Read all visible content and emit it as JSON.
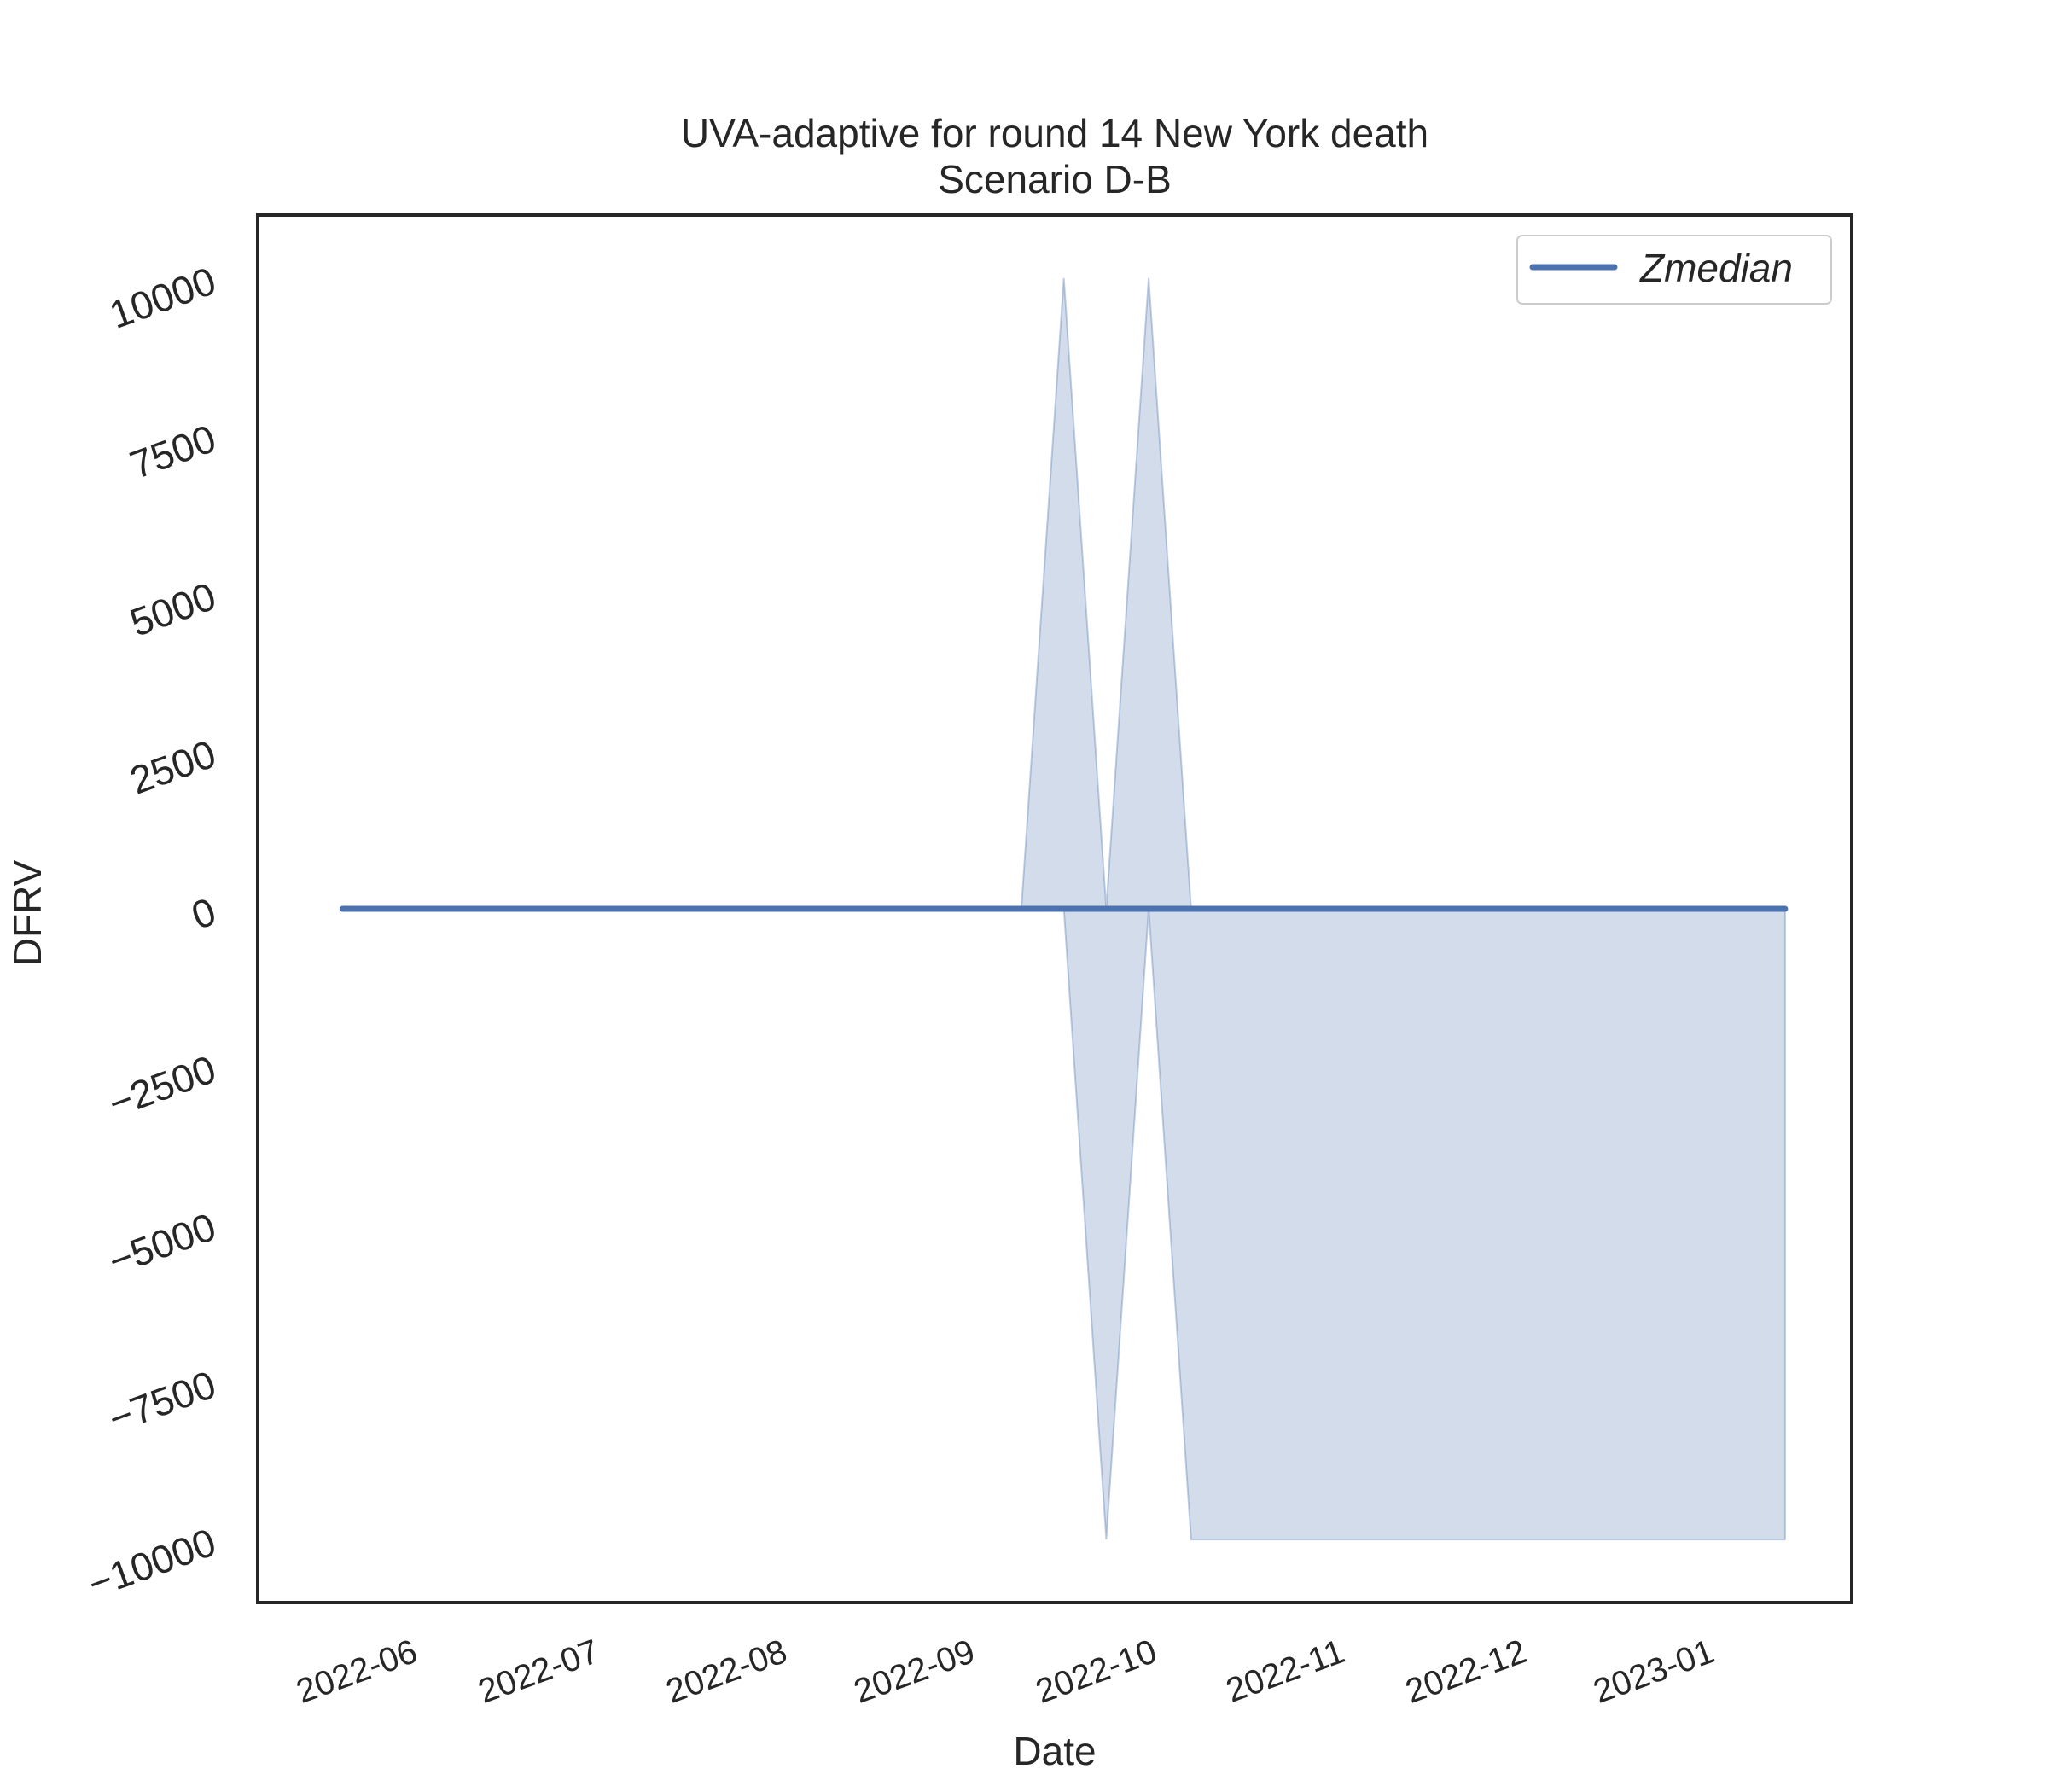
{
  "chart_data": {
    "type": "line",
    "title": "UVA-adaptive for round 14 New York death",
    "subtitle": "Scenario D-B",
    "xlabel": "Date",
    "ylabel": "DFRV",
    "x_ticks": [
      "2022-06",
      "2022-07",
      "2022-08",
      "2022-09",
      "2022-10",
      "2022-11",
      "2022-12",
      "2023-01"
    ],
    "y_ticks": [
      "−10000",
      "−7500",
      "−5000",
      "−2500",
      "0",
      "2500",
      "5000",
      "7500",
      "10000"
    ],
    "ylim": [
      -11000,
      11000
    ],
    "xlim": [
      "2022-05-07",
      "2023-01-25"
    ],
    "grid": false,
    "legend_position": "top-right",
    "series": [
      {
        "name": "Zmedian",
        "color": "#4c72b0",
        "x": [
          "2022-05-21",
          "2022-09-10",
          "2022-09-17",
          "2022-09-24",
          "2022-10-01",
          "2022-10-08",
          "2022-10-15",
          "2023-01-14"
        ],
        "values": [
          0,
          0,
          0,
          0,
          0,
          0,
          0,
          0
        ]
      }
    ],
    "band": {
      "color": "#4c72b0",
      "opacity": 0.25,
      "x": [
        "2022-05-21",
        "2022-09-10",
        "2022-09-17",
        "2022-09-24",
        "2022-10-01",
        "2022-10-08",
        "2022-10-15",
        "2023-01-14"
      ],
      "upper": [
        0,
        0,
        10000,
        0,
        10000,
        0,
        0,
        0
      ],
      "lower": [
        0,
        0,
        0,
        -10000,
        0,
        -10000,
        -10000,
        -10000
      ]
    }
  }
}
